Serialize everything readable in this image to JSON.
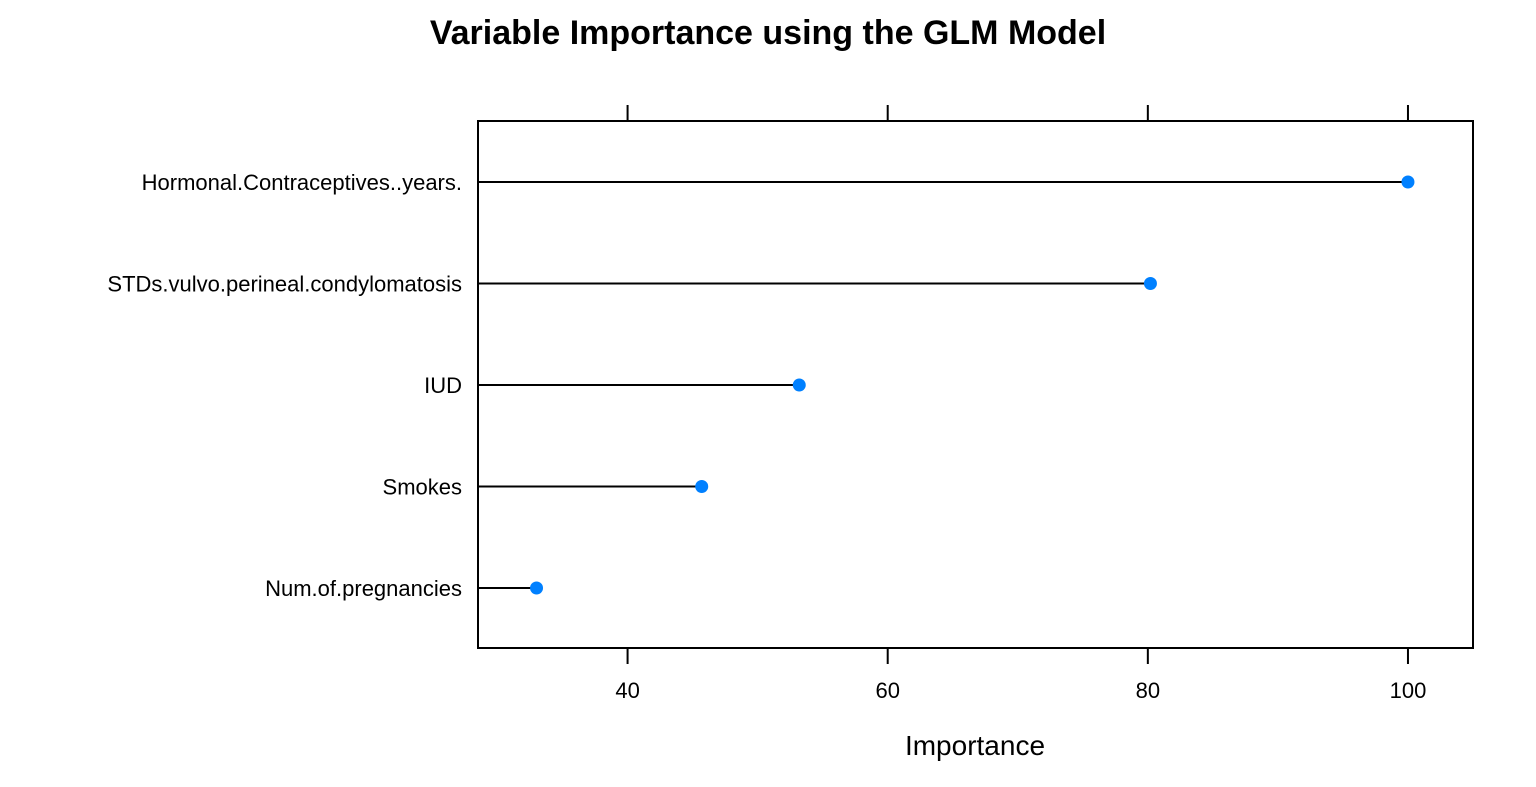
{
  "chart_data": {
    "type": "scatter",
    "style": "dotplot",
    "title": "Variable Importance using the GLM Model",
    "xlabel": "Importance",
    "ylabel": "",
    "xlim": [
      28.5,
      105
    ],
    "x_ticks": [
      40,
      60,
      80,
      100
    ],
    "x_tick_labels": [
      "40",
      "60",
      "80",
      "100"
    ],
    "ticks_on_top": true,
    "grid": false,
    "legend": "none",
    "point_color": "#0080FF",
    "line_color": "#000000",
    "categories": [
      "Hormonal.Contraceptives..years.",
      "STDs.vulvo.perineal.condylomatosis",
      "IUD",
      "Smokes",
      "Num.of.pregnancies"
    ],
    "values": [
      100,
      80.2,
      53.2,
      45.7,
      33.0
    ]
  }
}
